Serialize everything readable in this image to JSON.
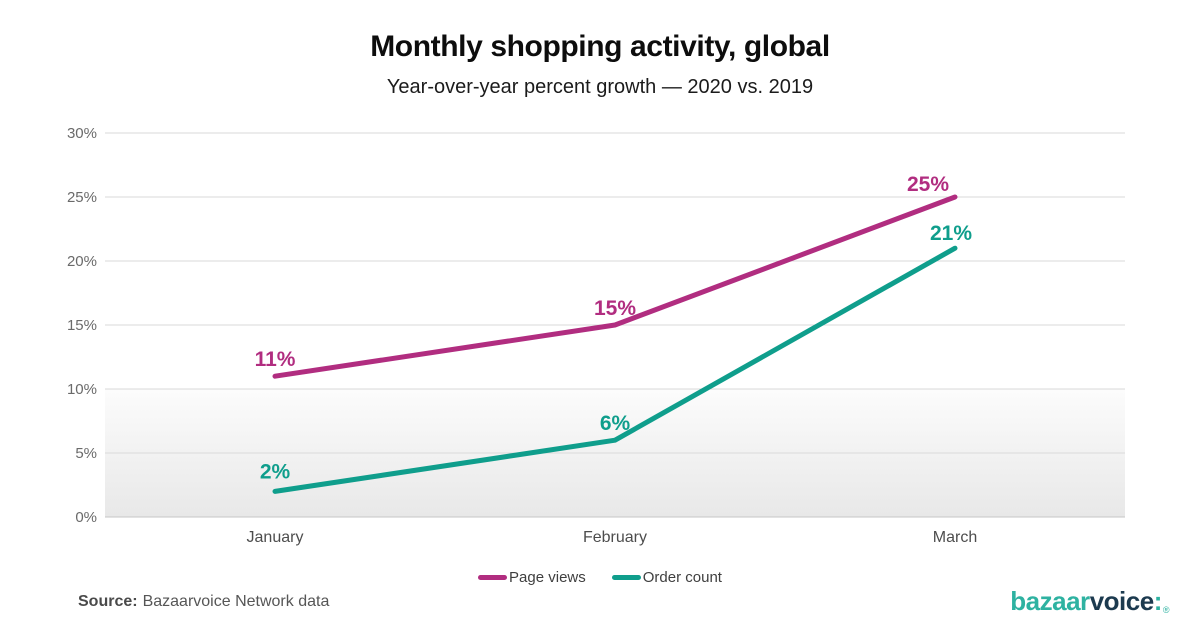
{
  "header": {
    "title": "Monthly shopping activity, global",
    "subtitle": "Year-over-year percent growth — 2020 vs. 2019"
  },
  "chart_data": {
    "type": "line",
    "title": "Monthly shopping activity, global",
    "subtitle": "Year-over-year percent growth — 2020 vs. 2019",
    "categories": [
      "January",
      "February",
      "March"
    ],
    "series": [
      {
        "name": "Page views",
        "values": [
          11,
          15,
          25
        ],
        "labels": [
          "11%",
          "15%",
          "25%"
        ],
        "color": "#b12d80"
      },
      {
        "name": "Order count",
        "values": [
          2,
          6,
          21
        ],
        "labels": [
          "2%",
          "6%",
          "21%"
        ],
        "color": "#0f9e8c"
      }
    ],
    "ylim": [
      0,
      30
    ],
    "y_ticks": [
      0,
      5,
      10,
      15,
      20,
      25,
      30
    ],
    "y_tick_labels": [
      "0%",
      "5%",
      "10%",
      "15%",
      "20%",
      "25%",
      "30%"
    ],
    "xlabel": "",
    "ylabel": "",
    "grid": true,
    "legend_position": "bottom",
    "plot_background": "white fading to light gray below the 10% gridline"
  },
  "footer": {
    "source_label": "Source:",
    "source_text": "Bazaarvoice Network data"
  },
  "logo": {
    "text": "bazaarvoice:",
    "part_bazaar": "bazaar",
    "part_voice": "voice",
    "colon": ":",
    "registered_mark": "®",
    "color_teal": "#2eb2a1",
    "color_navy": "#1c3a4f"
  },
  "style": {
    "gridline_color": "#d9d9d9",
    "baseline_color": "#c6c6c6",
    "axis_text_color": "#6a6a6a",
    "x_label_color": "#4d4d4d",
    "fade_top": "#fcfcfc",
    "fade_bottom": "#e8e8e8"
  }
}
